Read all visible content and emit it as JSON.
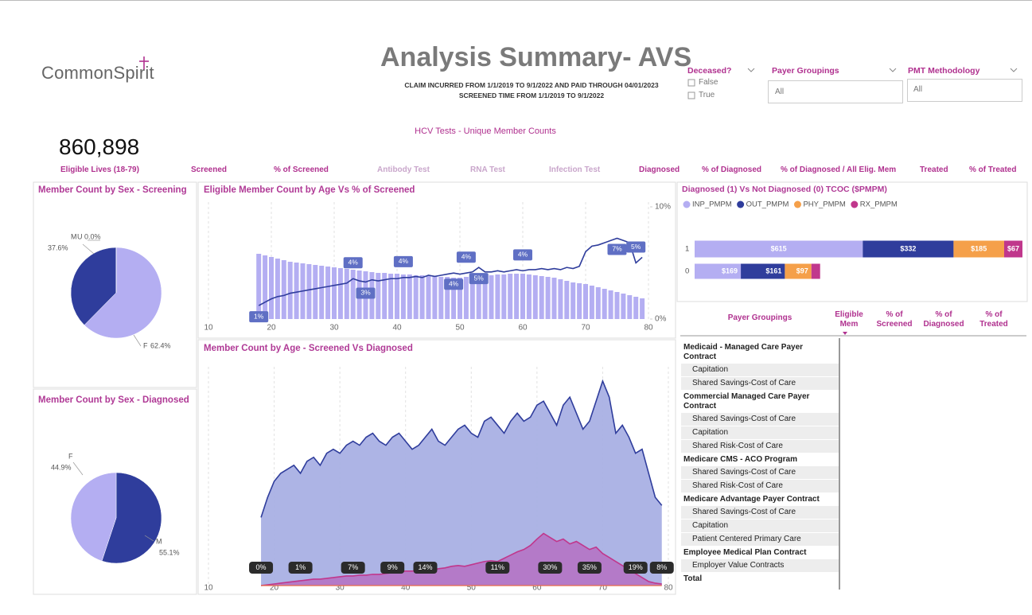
{
  "header": {
    "logo": "CommonSpirit",
    "title": "Analysis Summary- AVS",
    "subtitle_lines": [
      "CLAIM INCURRED FROM 1/1/2019 TO 9/1/2022 AND PAID THROUGH 04/01/2023",
      "SCREENED TIME FROM 1/1/2019 TO 9/1/2022"
    ]
  },
  "filters": {
    "deceased": {
      "label": "Deceased?",
      "options": [
        "False",
        "True"
      ]
    },
    "payer_groupings": {
      "label": "Payer Groupings",
      "value": "All"
    },
    "pmt_methodology": {
      "label": "PMT Methodology",
      "value": "All"
    }
  },
  "kpis": {
    "section_title": "HCV Tests - Unique Member Counts",
    "eligible_lives": "860,898",
    "labels": [
      "Eligible Lives (18-79)",
      "Screened",
      "% of Screened",
      "Antibody Test",
      "RNA Test",
      "Infection Test",
      "Diagnosed",
      "% of Diagnosed",
      "% of Diagnosed / All Elig. Mem",
      "Treated",
      "% of Treated"
    ]
  },
  "chart_data": [
    {
      "type": "pie",
      "title": "Member Count by Sex - Screening",
      "categories": [
        "F",
        "M",
        "U"
      ],
      "values": [
        62.4,
        37.6,
        0.0
      ],
      "value_labels": [
        "62.4%",
        "37.6%",
        "0.0%"
      ],
      "colors": [
        "#b4aef2",
        "#2f3d9c",
        "#e07ab5"
      ]
    },
    {
      "type": "pie",
      "title": "Member Count by Sex - Diagnosed",
      "categories": [
        "M",
        "F"
      ],
      "values": [
        55.1,
        44.9
      ],
      "value_labels": [
        "55.1%",
        "44.9%"
      ],
      "colors": [
        "#2f3d9c",
        "#b4aef2"
      ]
    },
    {
      "type": "combo",
      "title": "Eligible Member Count by Age Vs % of Screened",
      "x": [
        18,
        19,
        20,
        21,
        22,
        23,
        24,
        25,
        26,
        27,
        28,
        29,
        30,
        31,
        32,
        33,
        34,
        35,
        36,
        37,
        38,
        39,
        40,
        41,
        42,
        43,
        44,
        45,
        46,
        47,
        48,
        49,
        50,
        51,
        52,
        53,
        54,
        55,
        56,
        57,
        58,
        59,
        60,
        61,
        62,
        63,
        64,
        65,
        66,
        67,
        68,
        69,
        70,
        71,
        72,
        73,
        74,
        75,
        76,
        77,
        78,
        79
      ],
      "xlim": [
        10,
        80
      ],
      "xticks": [
        10,
        20,
        30,
        40,
        50,
        60,
        70,
        80
      ],
      "y2lim": [
        0,
        10
      ],
      "y2ticks": [
        {
          "value": 0,
          "label": "0%"
        },
        {
          "value": 10,
          "label": "10%"
        }
      ],
      "grid": true,
      "series": [
        {
          "type": "bar",
          "color": "#b4aef2",
          "values": [
            82,
            80,
            78,
            76,
            74,
            72,
            71,
            70,
            69,
            68,
            67,
            66,
            65,
            64,
            63,
            62,
            61,
            60,
            59,
            58,
            58,
            57,
            57,
            56,
            56,
            55,
            55,
            54,
            54,
            53,
            53,
            52,
            52,
            53,
            53,
            54,
            55,
            55,
            56,
            56,
            57,
            57,
            57,
            56,
            55,
            54,
            53,
            52,
            50,
            48,
            46,
            45,
            44,
            42,
            40,
            38,
            36,
            34,
            32,
            30,
            28,
            26
          ]
        },
        {
          "type": "line",
          "axis": "y2",
          "color": "#2f3d9c",
          "values": [
            1.2,
            1.5,
            1.8,
            2.0,
            2.1,
            2.3,
            2.4,
            2.5,
            2.6,
            2.7,
            2.8,
            2.9,
            3.0,
            3.1,
            3.2,
            3.6,
            3.4,
            3.3,
            3.5,
            3.4,
            3.5,
            3.6,
            3.6,
            3.7,
            3.7,
            3.8,
            3.7,
            3.9,
            3.8,
            3.9,
            4.0,
            4.1,
            4.0,
            4.1,
            4.2,
            4.6,
            4.2,
            4.2,
            4.3,
            4.2,
            4.3,
            4.4,
            4.3,
            4.4,
            4.4,
            4.5,
            4.4,
            4.5,
            4.4,
            4.6,
            4.5,
            4.7,
            6.0,
            6.5,
            6.6,
            6.8,
            7.0,
            7.2,
            7.0,
            6.8,
            5.0,
            5.5
          ],
          "value_labels": [
            "1%",
            null,
            null,
            null,
            null,
            null,
            null,
            null,
            null,
            null,
            null,
            null,
            null,
            null,
            null,
            "4%",
            null,
            "3%",
            null,
            null,
            null,
            null,
            null,
            "4%",
            null,
            null,
            null,
            null,
            null,
            null,
            null,
            "4%",
            null,
            "4%",
            null,
            "5%",
            null,
            null,
            null,
            null,
            null,
            null,
            "4%",
            null,
            null,
            null,
            null,
            null,
            null,
            null,
            null,
            null,
            null,
            null,
            null,
            null,
            null,
            "7%",
            null,
            null,
            "5%",
            null
          ]
        }
      ]
    },
    {
      "type": "area",
      "title": "Member Count by Age - Screened Vs Diagnosed",
      "x": [
        18,
        19,
        20,
        21,
        22,
        23,
        24,
        25,
        26,
        27,
        28,
        29,
        30,
        31,
        32,
        33,
        34,
        35,
        36,
        37,
        38,
        39,
        40,
        41,
        42,
        43,
        44,
        45,
        46,
        47,
        48,
        49,
        50,
        51,
        52,
        53,
        54,
        55,
        56,
        57,
        58,
        59,
        60,
        61,
        62,
        63,
        64,
        65,
        66,
        67,
        68,
        69,
        70,
        71,
        72,
        73,
        74,
        75,
        76,
        77,
        78,
        79
      ],
      "xlim": [
        10,
        80
      ],
      "xticks": [
        10,
        20,
        30,
        40,
        50,
        60,
        70,
        80
      ],
      "grid": true,
      "series": [
        {
          "color": "#2f3d9c",
          "fill": "#a9b0e4",
          "values": [
            85,
            110,
            130,
            140,
            145,
            150,
            140,
            155,
            160,
            150,
            165,
            170,
            165,
            175,
            180,
            175,
            185,
            190,
            180,
            175,
            185,
            190,
            180,
            170,
            175,
            185,
            195,
            180,
            175,
            185,
            195,
            200,
            190,
            185,
            205,
            210,
            200,
            190,
            205,
            215,
            205,
            210,
            225,
            230,
            215,
            200,
            225,
            235,
            215,
            195,
            205,
            230,
            255,
            235,
            190,
            200,
            185,
            165,
            170,
            140,
            110,
            100
          ]
        },
        {
          "color": "#c0378c",
          "fill": "#b56cc0",
          "values": [
            0,
            1,
            2,
            3,
            4,
            5,
            6,
            7,
            8,
            8,
            9,
            10,
            11,
            12,
            12,
            13,
            13,
            14,
            14,
            15,
            16,
            17,
            18,
            18,
            19,
            20,
            19,
            21,
            22,
            24,
            25,
            24,
            26,
            28,
            30,
            31,
            30,
            34,
            38,
            42,
            45,
            50,
            58,
            65,
            60,
            55,
            58,
            52,
            55,
            50,
            45,
            48,
            40,
            35,
            30,
            25,
            20,
            15,
            10,
            5,
            3,
            2
          ]
        }
      ],
      "annotations": [
        {
          "x": 18,
          "text": "0%"
        },
        {
          "x": 24,
          "text": "1%"
        },
        {
          "x": 32,
          "text": "7%"
        },
        {
          "x": 38,
          "text": "9%"
        },
        {
          "x": 43,
          "text": "14%"
        },
        {
          "x": 54,
          "text": "11%"
        },
        {
          "x": 62,
          "text": "30%"
        },
        {
          "x": 68,
          "text": "35%"
        },
        {
          "x": 75,
          "text": "19%"
        },
        {
          "x": 79,
          "text": "8%"
        }
      ]
    },
    {
      "type": "hbar_stacked",
      "title": "Diagnosed (1) Vs Not Diagnosed (0) TCOC ($PMPM)",
      "categories": [
        "1",
        "0"
      ],
      "series": [
        {
          "name": "INP_PMPM",
          "color": "#b4aef2",
          "values": [
            615,
            169
          ],
          "value_labels": [
            "$615",
            "$169"
          ]
        },
        {
          "name": "OUT_PMPM",
          "color": "#2f3d9c",
          "values": [
            332,
            161
          ],
          "value_labels": [
            "$332",
            "$161"
          ]
        },
        {
          "name": "PHY_PMPM",
          "color": "#f5a04a",
          "values": [
            185,
            97
          ],
          "value_labels": [
            "$185",
            "$97"
          ]
        },
        {
          "name": "RX_PMPM",
          "color": "#c0378c",
          "values": [
            67,
            32
          ],
          "value_labels": [
            "$67",
            null
          ]
        }
      ]
    }
  ],
  "table": {
    "columns": [
      "Payer Groupings",
      "Eligible Mem",
      "% of Screened",
      "% of Diagnosed",
      "% of Treated"
    ],
    "groups": [
      {
        "name": "Medicaid - Managed Care Payer Contract",
        "items": [
          "Capitation",
          "Shared Savings-Cost of Care"
        ]
      },
      {
        "name": "Commercial Managed Care Payer Contract",
        "items": [
          "Shared Savings-Cost of Care",
          "Capitation",
          "Shared Risk-Cost of Care"
        ]
      },
      {
        "name": "Medicare CMS - ACO Program",
        "items": [
          "Shared Savings-Cost of Care",
          "Shared Risk-Cost of Care"
        ]
      },
      {
        "name": "Medicare Advantage Payer Contract",
        "items": [
          "Shared Savings-Cost of Care",
          "Capitation",
          "Patient Centered Primary Care"
        ]
      },
      {
        "name": "Employee Medical Plan Contract",
        "items": [
          "Employer Value Contracts"
        ]
      }
    ],
    "total": "Total"
  }
}
